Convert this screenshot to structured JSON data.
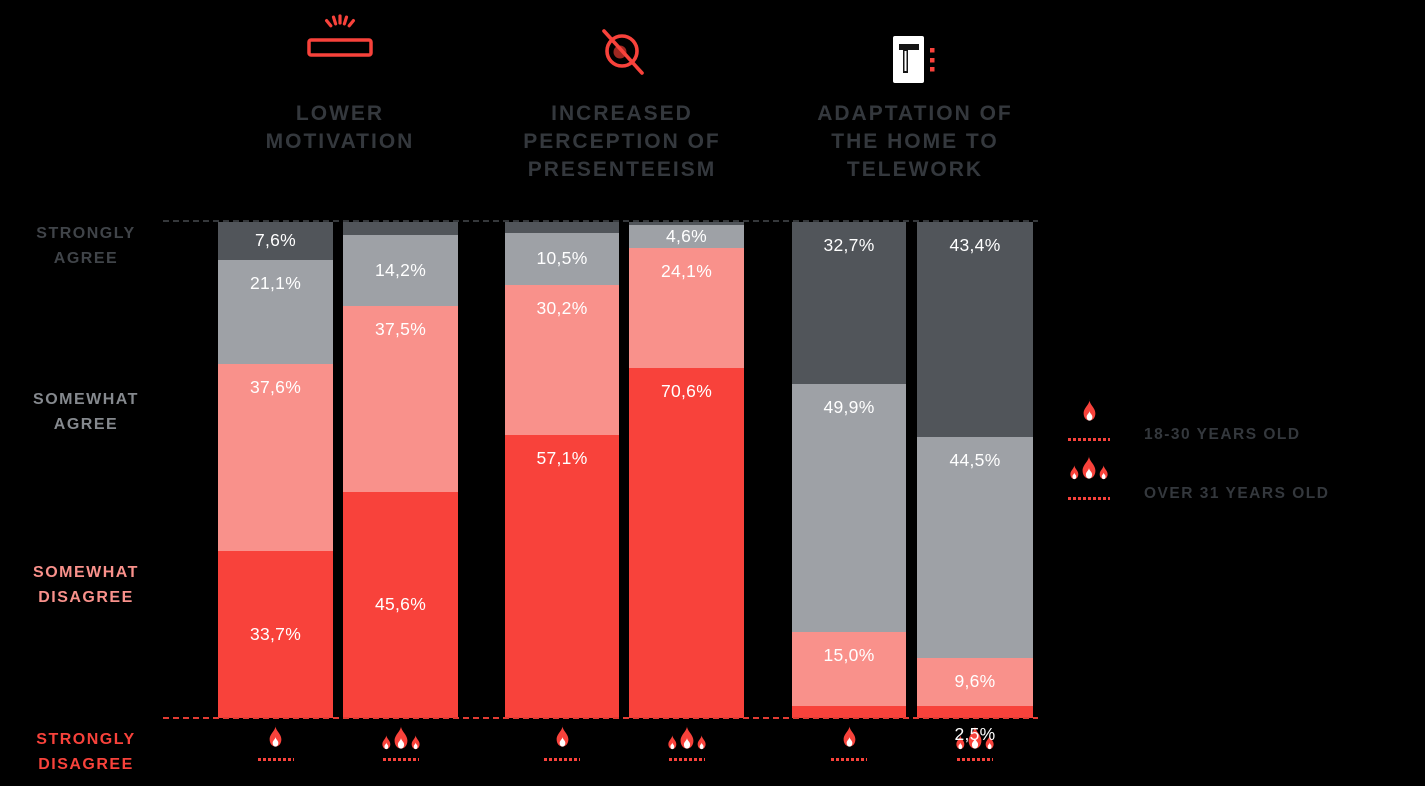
{
  "chart_data": {
    "type": "bar",
    "stacked": true,
    "percent_stacked": true,
    "value_unit": "%",
    "decimal_separator": ",",
    "colors": {
      "strongly_agree": "#51555A",
      "somewhat_agree": "#9EA1A6",
      "somewhat_disagree": "#F9918B",
      "strongly_disagree": "#F8423B",
      "background": "#000000",
      "value_label": "#FFFFFF",
      "accent_red": "#F8423B"
    },
    "row_axis": [
      {
        "label": "STRONGLY\nAGREE",
        "color": "#404449"
      },
      {
        "label": "SOMEWHAT\nAGREE",
        "color": "#85898E"
      },
      {
        "label": "SOMEWHAT\nDISAGREE",
        "color": "#F9918B"
      },
      {
        "label": "STRONGLY\nDISAGREE",
        "color": "#F8423B"
      }
    ],
    "groups": [
      {
        "title": "LOWER\nMOTIVATION",
        "icon": "low-battery-icon",
        "bars": [
          {
            "series": "18-30 YEARS OLD",
            "marker": "single-flame",
            "segments": [
              {
                "category": "strongly_agree",
                "value": 7.6,
                "label": "7,6%"
              },
              {
                "category": "somewhat_agree",
                "value": 21.1,
                "label": "21,1%"
              },
              {
                "category": "somewhat_disagree",
                "value": 37.6,
                "label": "37,6%"
              },
              {
                "category": "strongly_disagree",
                "value": 33.7,
                "label": "33,7%",
                "label_pos": "center"
              }
            ]
          },
          {
            "series": "OVER 31 YEARS OLD",
            "marker": "triple-flame",
            "segments": [
              {
                "category": "strongly_agree",
                "value": 2.7,
                "label": ""
              },
              {
                "category": "somewhat_agree",
                "value": 14.2,
                "label": "14,2%"
              },
              {
                "category": "somewhat_disagree",
                "value": 37.5,
                "label": "37,5%"
              },
              {
                "category": "strongly_disagree",
                "value": 45.6,
                "label": "45,6%",
                "label_pos": "center"
              }
            ]
          }
        ]
      },
      {
        "title": "INCREASED\nPERCEPTION OF\nPRESENTEEISM",
        "icon": "crossed-eye-icon",
        "bars": [
          {
            "series": "18-30 YEARS OLD",
            "marker": "single-flame",
            "segments": [
              {
                "category": "strongly_agree",
                "value": 2.2,
                "label": ""
              },
              {
                "category": "somewhat_agree",
                "value": 10.5,
                "label": "10,5%"
              },
              {
                "category": "somewhat_disagree",
                "value": 30.2,
                "label": "30,2%"
              },
              {
                "category": "strongly_disagree",
                "value": 57.1,
                "label": "57,1%"
              }
            ]
          },
          {
            "series": "OVER 31 YEARS OLD",
            "marker": "triple-flame",
            "segments": [
              {
                "category": "strongly_agree",
                "value": 0.7,
                "label": ""
              },
              {
                "category": "somewhat_agree",
                "value": 4.6,
                "label": "4,6%"
              },
              {
                "category": "somewhat_disagree",
                "value": 24.1,
                "label": "24,1%"
              },
              {
                "category": "strongly_disagree",
                "value": 70.6,
                "label": "70,6%"
              }
            ]
          }
        ]
      },
      {
        "title": "ADAPTATION OF\nTHE HOME TO\nTELEWORK",
        "icon": "home-desk-icon",
        "bars": [
          {
            "series": "18-30 YEARS OLD",
            "marker": "single-flame",
            "segments": [
              {
                "category": "strongly_agree",
                "value": 32.7,
                "label": "32,7%"
              },
              {
                "category": "somewhat_agree",
                "value": 49.9,
                "label": "49,9%"
              },
              {
                "category": "somewhat_disagree",
                "value": 15.0,
                "label": "15,0%"
              },
              {
                "category": "strongly_disagree",
                "value": 2.4,
                "label": ""
              }
            ]
          },
          {
            "series": "OVER 31 YEARS OLD",
            "marker": "triple-flame",
            "segments": [
              {
                "category": "strongly_agree",
                "value": 43.4,
                "label": "43,4%"
              },
              {
                "category": "somewhat_agree",
                "value": 44.5,
                "label": "44,5%"
              },
              {
                "category": "somewhat_disagree",
                "value": 9.6,
                "label": "9,6%"
              },
              {
                "category": "strongly_disagree",
                "value": 2.5,
                "label": "2,5%",
                "label_pos": "below"
              }
            ]
          }
        ]
      }
    ],
    "legend": [
      {
        "marker": "single-flame",
        "label": "18-30 YEARS OLD"
      },
      {
        "marker": "triple-flame",
        "label": "OVER 31 YEARS OLD"
      }
    ]
  }
}
